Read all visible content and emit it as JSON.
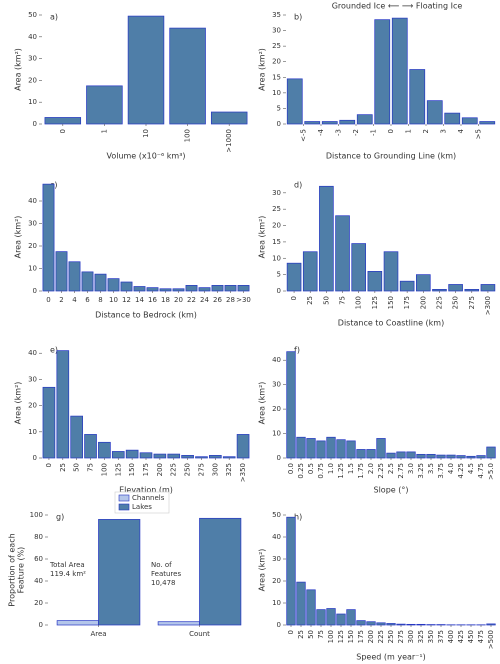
{
  "chart_data": [
    {
      "type": "bar",
      "title": "a)",
      "xlabel": "Volume (x10⁻⁶ km³)",
      "ylabel": "Area (km²)",
      "categories": [
        "0",
        "1",
        "10",
        "100",
        ">1000"
      ],
      "values": [
        3,
        17.5,
        49.5,
        44,
        5.5
      ],
      "color": "#4f7ea8",
      "edgecolor": "#2536c4",
      "ylim": [
        0,
        50
      ],
      "yticks": [
        0,
        10,
        20,
        30,
        40,
        50
      ],
      "xtick_rotation": 90
    },
    {
      "type": "histogram",
      "title": "b)",
      "annotation": "Grounded Ice ⟵ ⟶ Floating Ice",
      "xlabel": "Distance to Grounding Line (km)",
      "ylabel": "Area (km²)",
      "bins": [
        -6,
        -5,
        -4,
        -3,
        -2,
        -1,
        0,
        1,
        2,
        3,
        4,
        5,
        6
      ],
      "values": [
        14.5,
        0.8,
        0.8,
        1.2,
        3,
        33.5,
        34,
        17.5,
        7.5,
        3.5,
        2,
        0.8
      ],
      "color": "#4f7ea8",
      "edgecolor": "#2536c4",
      "xlim": [
        -6,
        6
      ],
      "xticks": [
        {
          "value": -5,
          "label": "<-5"
        },
        -4,
        -3,
        -2,
        -1,
        0,
        1,
        2,
        3,
        4,
        {
          "value": 5,
          "label": ">5"
        }
      ],
      "ylim": [
        0,
        35
      ],
      "yticks": [
        0,
        5,
        10,
        15,
        20,
        25,
        30,
        35
      ],
      "xtick_rotation": 90
    },
    {
      "type": "bar",
      "title": "c)",
      "xlabel": "Distance to Bedrock (km)",
      "ylabel": "Area (km²)",
      "categories": [
        "0",
        "2",
        "4",
        "6",
        "8",
        "10",
        "12",
        "14",
        "16",
        "18",
        "20",
        "22",
        "24",
        "26",
        "28",
        ">30"
      ],
      "values": [
        47.5,
        17.5,
        13,
        8.5,
        7.5,
        5.5,
        4,
        2,
        1.5,
        1,
        1,
        2.5,
        1.5,
        2.5,
        2.5,
        2.5
      ],
      "color": "#4f7ea8",
      "edgecolor": "#2536c4",
      "ylim": [
        0,
        48
      ],
      "yticks": [
        0,
        10,
        20,
        30,
        40
      ],
      "xtick_rotation": 0
    },
    {
      "type": "bar",
      "title": "d)",
      "xlabel": "Distance to Coastline (km)",
      "ylabel": "Area (km²)",
      "categories": [
        "0",
        "25",
        "50",
        "75",
        "100",
        "125",
        "150",
        "175",
        "200",
        "225",
        "250",
        "275",
        ">300"
      ],
      "values": [
        8.5,
        12,
        32,
        23,
        14.5,
        6,
        12,
        3,
        5,
        0.5,
        2,
        0.5,
        2
      ],
      "color": "#4f7ea8",
      "edgecolor": "#2536c4",
      "ylim": [
        0,
        33
      ],
      "yticks": [
        0,
        5,
        10,
        15,
        20,
        25,
        30
      ],
      "xtick_rotation": 90
    },
    {
      "type": "bar",
      "title": "e)",
      "xlabel": "Elevation (m)",
      "ylabel": "Area (km²)",
      "categories": [
        "0",
        "25",
        "50",
        "75",
        "100",
        "125",
        "150",
        "175",
        "200",
        "225",
        "250",
        "275",
        "300",
        "325",
        ">350"
      ],
      "values": [
        27,
        41,
        16,
        9,
        6,
        2.5,
        3,
        2,
        1.5,
        1.5,
        1,
        0.5,
        1,
        0.5,
        9
      ],
      "color": "#4f7ea8",
      "edgecolor": "#2536c4",
      "ylim": [
        0,
        42
      ],
      "yticks": [
        0,
        10,
        20,
        30,
        40
      ],
      "xtick_rotation": 90
    },
    {
      "type": "bar",
      "title": "f)",
      "xlabel": "Slope (°)",
      "ylabel": "Area (km²)",
      "categories": [
        "0.0",
        "0.25",
        "0.5",
        "0.75",
        "1.0",
        "1.25",
        "1.5",
        "1.75",
        "2.0",
        "2.25",
        "2.5",
        "2.75",
        "3.0",
        "3.25",
        "3.5",
        "3.75",
        "4.0",
        "4.25",
        "4.5",
        "4.75",
        ">5.0"
      ],
      "values": [
        43.5,
        8.5,
        8,
        7,
        8.5,
        7.5,
        7,
        3.5,
        3.5,
        8,
        2,
        2.5,
        2.5,
        1.5,
        1.5,
        1.2,
        1.2,
        1,
        0.7,
        1,
        4.5
      ],
      "color": "#4f7ea8",
      "edgecolor": "#2536c4",
      "ylim": [
        0,
        45
      ],
      "yticks": [
        0,
        10,
        20,
        30,
        40
      ],
      "xtick_rotation": 90
    },
    {
      "type": "grouped_bar",
      "title": "g)",
      "ylabel": [
        "Proportion of each",
        "Feature (%)"
      ],
      "categories": [
        "Area",
        "Count"
      ],
      "series": [
        {
          "name": "Channels",
          "color": "#b4c6ea",
          "values": [
            4,
            3
          ]
        },
        {
          "name": "Lakes",
          "color": "#4f7ea8",
          "values": [
            96,
            97
          ]
        }
      ],
      "edgecolor": "#2536c4",
      "annotations": [
        [
          "Total Area",
          "119.4 km²"
        ],
        [
          "No. of",
          "Features",
          "10,478"
        ]
      ],
      "legend": "top",
      "ylim": [
        0,
        100
      ],
      "yticks": [
        0,
        20,
        40,
        60,
        80,
        100
      ],
      "xtick_rotation": 0
    },
    {
      "type": "bar",
      "title": "h)",
      "xlabel": "Speed (m year⁻¹)",
      "ylabel": "Area (km²)",
      "categories": [
        "0",
        "25",
        "50",
        "75",
        "100",
        "125",
        "150",
        "175",
        "200",
        "225",
        "250",
        "275",
        "300",
        "325",
        "350",
        "375",
        "400",
        "425",
        "450",
        "475",
        ">500"
      ],
      "values": [
        49,
        19.5,
        16,
        7,
        7.5,
        5,
        7,
        2,
        1.5,
        1,
        0.7,
        0.4,
        0.3,
        0.3,
        0.2,
        0.2,
        0.1,
        0.1,
        0.1,
        0.1,
        0.5
      ],
      "color": "#4f7ea8",
      "edgecolor": "#2536c4",
      "ylim": [
        0,
        50
      ],
      "yticks": [
        0,
        10,
        20,
        30,
        40,
        50
      ],
      "xtick_rotation": 90
    }
  ]
}
